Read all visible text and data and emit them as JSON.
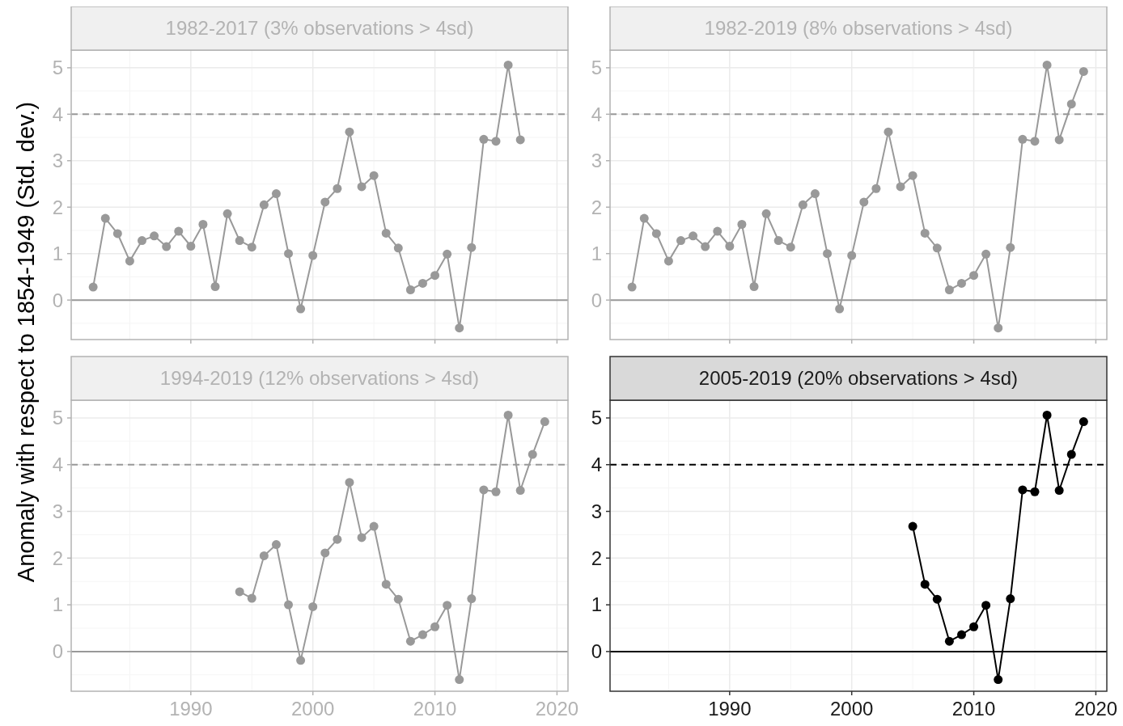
{
  "chart_data": [
    {
      "type": "line",
      "title": "1982-2017 (3% observations > 4sd)",
      "ylabel": "Anomaly with respect to 1854-1949 (Std. dev.)",
      "x": [
        1982,
        1983,
        1984,
        1985,
        1986,
        1987,
        1988,
        1989,
        1990,
        1991,
        1992,
        1993,
        1994,
        1995,
        1996,
        1997,
        1998,
        1999,
        2000,
        2001,
        2002,
        2003,
        2004,
        2005,
        2006,
        2007,
        2008,
        2009,
        2010,
        2011,
        2012,
        2013,
        2014,
        2015,
        2016,
        2017
      ],
      "series": [
        {
          "color": "#999999",
          "values": [
            0.28,
            1.76,
            1.43,
            0.84,
            1.28,
            1.38,
            1.15,
            1.48,
            1.16,
            1.63,
            0.29,
            1.86,
            1.28,
            1.14,
            2.05,
            2.29,
            1.0,
            -0.19,
            0.96,
            2.11,
            2.4,
            3.62,
            2.44,
            2.68,
            1.44,
            1.12,
            0.22,
            0.36,
            0.53,
            0.99,
            -0.6,
            1.13,
            3.46,
            3.42,
            5.06,
            3.45
          ]
        }
      ],
      "xlim": [
        1980.2,
        2020.9
      ],
      "ylim": [
        -0.85,
        5.38
      ],
      "xticks": [
        1990,
        2000,
        2010,
        2020
      ],
      "yticks": [
        0,
        1,
        2,
        3,
        4,
        5
      ],
      "tick_labels": "y",
      "grid": true,
      "marker": "circle",
      "line_style": "solid",
      "ref_lines": [
        {
          "axis": "y",
          "value": 4,
          "color": "#999999",
          "line_style": "dashed"
        },
        {
          "axis": "y",
          "value": 0,
          "color": "#999999",
          "line_style": "solid"
        }
      ]
    },
    {
      "type": "line",
      "title": "1982-2019 (8% observations > 4sd)",
      "x": [
        1982,
        1983,
        1984,
        1985,
        1986,
        1987,
        1988,
        1989,
        1990,
        1991,
        1992,
        1993,
        1994,
        1995,
        1996,
        1997,
        1998,
        1999,
        2000,
        2001,
        2002,
        2003,
        2004,
        2005,
        2006,
        2007,
        2008,
        2009,
        2010,
        2011,
        2012,
        2013,
        2014,
        2015,
        2016,
        2017,
        2018,
        2019
      ],
      "series": [
        {
          "color": "#999999",
          "values": [
            0.28,
            1.76,
            1.43,
            0.84,
            1.28,
            1.38,
            1.15,
            1.48,
            1.16,
            1.63,
            0.29,
            1.86,
            1.28,
            1.14,
            2.05,
            2.29,
            1.0,
            -0.19,
            0.96,
            2.11,
            2.4,
            3.62,
            2.44,
            2.68,
            1.44,
            1.12,
            0.22,
            0.36,
            0.53,
            0.99,
            -0.6,
            1.13,
            3.46,
            3.42,
            5.06,
            3.45,
            4.22,
            4.92
          ]
        }
      ],
      "xlim": [
        1980.2,
        2020.9
      ],
      "ylim": [
        -0.85,
        5.38
      ],
      "xticks": [
        1990,
        2000,
        2010,
        2020
      ],
      "yticks": [
        0,
        1,
        2,
        3,
        4,
        5
      ],
      "tick_labels": "y",
      "grid": true,
      "marker": "circle",
      "line_style": "solid",
      "ref_lines": [
        {
          "axis": "y",
          "value": 4,
          "color": "#999999",
          "line_style": "dashed"
        },
        {
          "axis": "y",
          "value": 0,
          "color": "#999999",
          "line_style": "solid"
        }
      ]
    },
    {
      "type": "line",
      "title": "1994-2019 (12% observations > 4sd)",
      "x": [
        1994,
        1995,
        1996,
        1997,
        1998,
        1999,
        2000,
        2001,
        2002,
        2003,
        2004,
        2005,
        2006,
        2007,
        2008,
        2009,
        2010,
        2011,
        2012,
        2013,
        2014,
        2015,
        2016,
        2017,
        2018,
        2019
      ],
      "series": [
        {
          "color": "#999999",
          "values": [
            1.28,
            1.14,
            2.05,
            2.29,
            1.0,
            -0.19,
            0.96,
            2.11,
            2.4,
            3.62,
            2.44,
            2.68,
            1.44,
            1.12,
            0.22,
            0.36,
            0.53,
            0.99,
            -0.6,
            1.13,
            3.46,
            3.42,
            5.06,
            3.45,
            4.22,
            4.92
          ]
        }
      ],
      "xlim": [
        1980.2,
        2020.9
      ],
      "ylim": [
        -0.85,
        5.38
      ],
      "xticks": [
        1990,
        2000,
        2010,
        2020
      ],
      "yticks": [
        0,
        1,
        2,
        3,
        4,
        5
      ],
      "grid": true,
      "marker": "circle",
      "line_style": "solid",
      "ref_lines": [
        {
          "axis": "y",
          "value": 4,
          "color": "#999999",
          "line_style": "dashed"
        },
        {
          "axis": "y",
          "value": 0,
          "color": "#999999",
          "line_style": "solid"
        }
      ]
    },
    {
      "type": "line",
      "title": "2005-2019 (20% observations > 4sd)",
      "x": [
        2005,
        2006,
        2007,
        2008,
        2009,
        2010,
        2011,
        2012,
        2013,
        2014,
        2015,
        2016,
        2017,
        2018,
        2019
      ],
      "series": [
        {
          "color": "#000000",
          "values": [
            2.68,
            1.44,
            1.12,
            0.22,
            0.36,
            0.53,
            0.99,
            -0.6,
            1.13,
            3.46,
            3.42,
            5.06,
            3.45,
            4.22,
            4.92
          ]
        }
      ],
      "xlim": [
        1980.2,
        2020.9
      ],
      "ylim": [
        -0.85,
        5.38
      ],
      "xticks": [
        1990,
        2000,
        2010,
        2020
      ],
      "yticks": [
        0,
        1,
        2,
        3,
        4,
        5
      ],
      "grid": true,
      "marker": "circle",
      "line_style": "solid",
      "ref_lines": [
        {
          "axis": "y",
          "value": 4,
          "color": "#000000",
          "line_style": "dashed"
        },
        {
          "axis": "y",
          "value": 0,
          "color": "#000000",
          "line_style": "solid"
        }
      ]
    }
  ]
}
